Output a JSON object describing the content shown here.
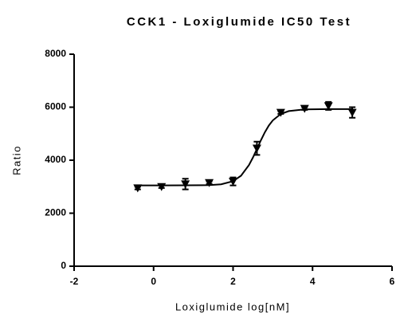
{
  "chart_data": {
    "type": "scatter",
    "title": "CCK1 - Loxiglumide IC50 Test",
    "x_label": "Loxiglumide log[nM]",
    "y_label": "Ratio",
    "x": [
      -0.4,
      0.2,
      0.8,
      1.4,
      2.0,
      2.6,
      3.2,
      3.8,
      4.4,
      5.0
    ],
    "values": [
      2950,
      3000,
      3100,
      3150,
      3200,
      4450,
      5800,
      5950,
      6050,
      5800
    ],
    "errors": [
      50,
      50,
      200,
      50,
      150,
      250,
      50,
      50,
      150,
      200
    ],
    "color": "#000000",
    "fit": {
      "x": [
        -0.4,
        0.2,
        0.8,
        1.4,
        1.7,
        2.0,
        2.2,
        2.4,
        2.5,
        2.6,
        2.7,
        2.8,
        2.9,
        3.0,
        3.2,
        3.4,
        3.8,
        4.4,
        5.0
      ],
      "values": [
        3050,
        3050,
        3051,
        3060,
        3091,
        3207,
        3414,
        3818,
        4101,
        4424,
        4752,
        5054,
        5309,
        5503,
        5744,
        5853,
        5917,
        5930,
        5930
      ]
    },
    "xlim": [
      -2,
      6
    ],
    "xticks": [
      -2,
      0,
      2,
      4,
      6
    ],
    "ylim": [
      0,
      8000
    ],
    "yticks": [
      0,
      2000,
      4000,
      6000,
      8000
    ]
  }
}
